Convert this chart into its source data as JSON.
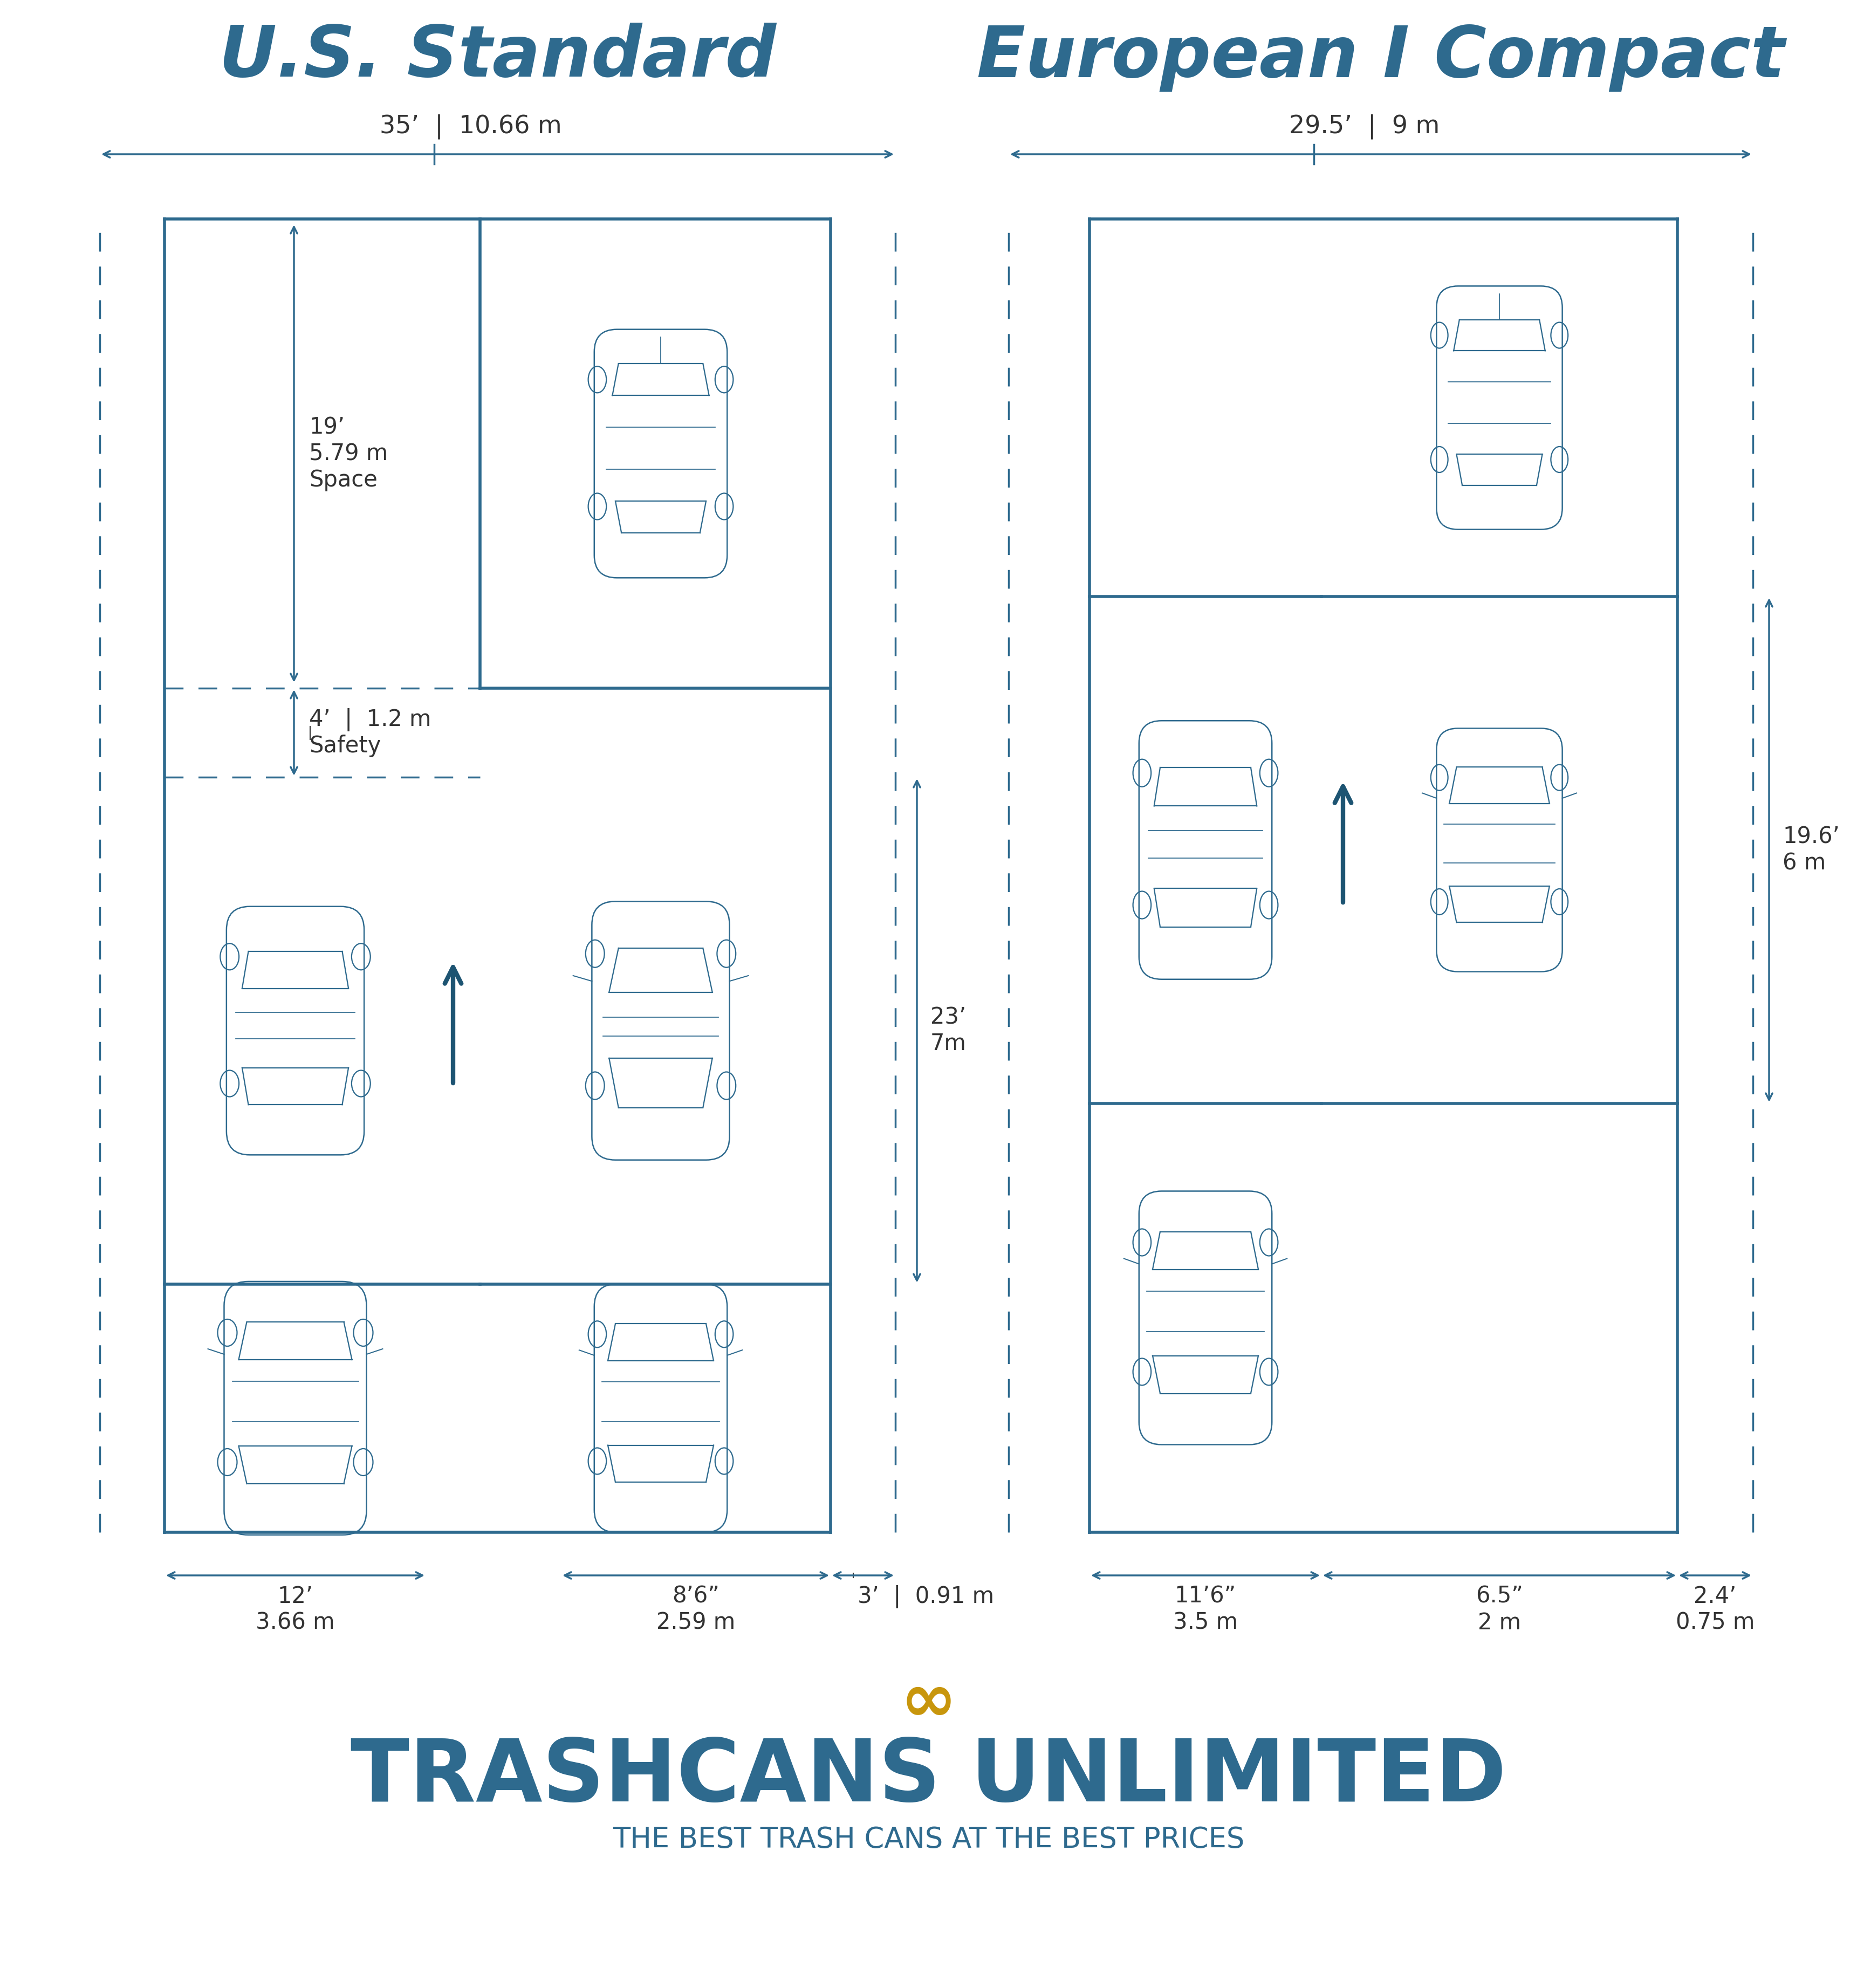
{
  "bg_color": "#ffffff",
  "line_color": "#2e6a8e",
  "dark_blue": "#1d5472",
  "title_color": "#2e6a8e",
  "dim_color": "#333333",
  "title_us": "U.S. Standard",
  "title_eu": "European I Compact",
  "us_width_label": "35’  |  10.66 m",
  "us_space_label": "19’\n5.79 m\nSpace",
  "us_safety_label": "4’  |  1.2 m\nSafety",
  "us_aisle_label": "23’\n7m",
  "us_stall1_label": "12’\n3.66 m",
  "us_stall2_label": "8’6”\n2.59 m",
  "us_overhang_label": "3’  |  0.91 m",
  "eu_width_label": "29.5’  |  9 m",
  "eu_aisle_label": "19.6’\n6 m",
  "eu_stall1_label": "11’6”\n3.5 m",
  "eu_stall2_label": "6.5”\n2 m",
  "eu_overhang_label": "2.4’\n0.75 m",
  "brand_name": "TRASHCANS UNLIMITED",
  "brand_tagline": "THE BEST TRASH CANS AT THE BEST PRICES",
  "brand_color": "#2e6a8e",
  "gold_color": "#c8960c"
}
